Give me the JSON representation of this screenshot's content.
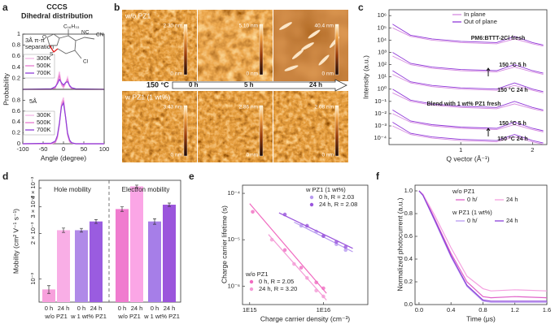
{
  "panel_b": {
    "label": "b",
    "rows": [
      {
        "label": "w/o PZ1",
        "scales": [
          "2.30 nm",
          "5.10 nm",
          "40.4 nm"
        ]
      },
      {
        "label": "w PZ1 (1 wt%)",
        "scales": [
          "3.43 nm",
          "2.86 nm",
          "2.08 nm"
        ]
      }
    ],
    "zero": "0 nm",
    "temperature": "150 °C",
    "times": [
      "0 h",
      "5 h",
      "24 h"
    ]
  },
  "chart_data": [
    {
      "type": "line",
      "label": "a",
      "title": "CCCS",
      "subtitle": "Dihedral distribution",
      "annotation": [
        "3Å π-π",
        "separation"
      ],
      "molecule_labels": [
        "C₁₆H₃₃",
        "NC",
        "CN",
        "Cl",
        "O",
        "S"
      ],
      "ylabel": "Probability",
      "x": [
        -100,
        -30,
        -20,
        -15,
        -10,
        -5,
        0,
        5,
        10,
        15,
        20,
        30,
        100
      ],
      "series": [
        {
          "name": "300K",
          "color": "#f5b6e6",
          "values": [
            0,
            0,
            0.02,
            0.15,
            0.32,
            0.08,
            0.02,
            0.1,
            0.22,
            0.05,
            0.01,
            0,
            0
          ]
        },
        {
          "name": "500K",
          "color": "#e67ad0",
          "values": [
            0,
            0,
            0.03,
            0.12,
            0.25,
            0.1,
            0.05,
            0.12,
            0.18,
            0.06,
            0.02,
            0,
            0
          ]
        },
        {
          "name": "700K",
          "color": "#8e3fd8",
          "values": [
            0,
            0.01,
            0.05,
            0.1,
            0.18,
            0.12,
            0.08,
            0.12,
            0.14,
            0.07,
            0.03,
            0.01,
            0
          ]
        }
      ],
      "xlim": [
        -100,
        100
      ],
      "ylim": [
        0,
        1
      ],
      "yticks": [
        0.2,
        0.4,
        0.6,
        0.8,
        1
      ]
    },
    {
      "type": "line",
      "annotation": [
        "5Å"
      ],
      "xlabel": "Angle (degree)",
      "x": [
        -100,
        -30,
        -20,
        -15,
        -10,
        -5,
        0,
        5,
        10,
        15,
        20,
        30,
        100
      ],
      "series": [
        {
          "name": "300K",
          "color": "#f5b6e6",
          "values": [
            0,
            0,
            0.02,
            0.1,
            0.35,
            0.75,
            0.85,
            0.5,
            0.15,
            0.03,
            0.01,
            0,
            0
          ]
        },
        {
          "name": "500K",
          "color": "#e67ad0",
          "values": [
            0,
            0,
            0.03,
            0.12,
            0.35,
            0.7,
            0.8,
            0.5,
            0.18,
            0.05,
            0.01,
            0,
            0
          ]
        },
        {
          "name": "700K",
          "color": "#8e3fd8",
          "values": [
            0,
            0.01,
            0.05,
            0.15,
            0.38,
            0.68,
            0.75,
            0.5,
            0.2,
            0.07,
            0.02,
            0,
            0
          ]
        }
      ],
      "xlim": [
        -100,
        100
      ],
      "xticks": [
        -100,
        -50,
        0,
        50,
        100
      ],
      "ylim": [
        0,
        1
      ],
      "yticks": [
        0,
        0.2,
        0.4,
        0.6,
        0.8
      ]
    },
    {
      "type": "line",
      "label": "c",
      "ylog": true,
      "xlabel": "Q vector (Å⁻¹)",
      "ylabel": "Intensity (a.u.)",
      "annotations": [
        "PM6:BTTT-2Cl fresh",
        "150 °C 5 h",
        "150 °C 24 h",
        "Blend with 1 wt% PZ1 fresh",
        "150 °C 5 h",
        "150 °C 24 h"
      ],
      "x": [
        0.05,
        0.3,
        0.6,
        1.0,
        1.5,
        1.75,
        2.0,
        2.15
      ],
      "series": [
        {
          "name": "In plane",
          "color": "#d68ae0",
          "curves": [
            [
              100000,
              20000,
              10000,
              6300,
              5000,
              12600,
              5000,
              3200
            ],
            [
              500,
              100,
              50,
              32,
              25,
              63,
              25,
              16
            ],
            [
              16,
              3.2,
              1.6,
              1,
              0.8,
              2,
              0.8,
              0.5
            ],
            [
              0.5,
              0.1,
              0.05,
              0.032,
              0.025,
              0.063,
              0.025,
              0.016
            ],
            [
              0.01,
              0.002,
              0.001,
              0.00063,
              0.0005,
              0.00126,
              0.0005,
              0.00032
            ],
            [
              0.001,
              0.0002,
              0.0001,
              6.3e-05,
              5e-05,
              0.000126,
              5e-05,
              3.2e-05
            ]
          ]
        },
        {
          "name": "Out of plane",
          "color": "#9038d8",
          "curves": [
            [
              200000,
              25000,
              12600,
              7900,
              6300,
              20000,
              6300,
              4000
            ],
            [
              1000,
              126,
              63,
              40,
              32,
              100,
              32,
              20
            ],
            [
              32,
              4,
              2,
              1.26,
              1,
              3.2,
              1,
              0.63
            ],
            [
              1,
              0.126,
              0.063,
              0.04,
              0.032,
              0.1,
              0.032,
              0.02
            ],
            [
              0.02,
              0.0025,
              0.00126,
              0.0008,
              0.00063,
              0.002,
              0.00063,
              0.0004
            ],
            [
              0.002,
              0.00025,
              0.000126,
              8e-05,
              6.3e-05,
              0.0002,
              6.3e-05,
              4e-05
            ]
          ]
        }
      ],
      "xlim": [
        0,
        2.2
      ],
      "xticks": [
        1,
        2
      ],
      "ylim": [
        3e-05,
        3000000
      ],
      "yticks": [
        {
          "value": 1000000,
          "label": "10⁶"
        },
        {
          "value": 100000,
          "label": "10⁵"
        },
        {
          "value": 10000,
          "label": "10⁴"
        },
        {
          "value": 1000,
          "label": "10³"
        },
        {
          "value": 100,
          "label": "10²"
        },
        {
          "value": 10,
          "label": "10¹"
        },
        {
          "value": 1,
          "label": "10⁰"
        },
        {
          "value": 0.1,
          "label": "10⁻¹"
        },
        {
          "value": 0.01,
          "label": "10⁻²"
        },
        {
          "value": 0.001,
          "label": "10⁻³"
        },
        {
          "value": 0.0001,
          "label": "10⁻⁴"
        }
      ]
    },
    {
      "type": "bar",
      "label": "d",
      "ylog": true,
      "ylabel": "Mobility (cm² V⁻¹ s⁻¹)",
      "annotations": [
        "Hole mobility",
        "Electron mobility"
      ],
      "categories": [
        "0 h",
        "24 h",
        "0 h",
        "24 h",
        "0 h",
        "24 h",
        "0 h",
        "24 h"
      ],
      "groups": [
        "w/o PZ1",
        "w 1 wt% PZ1",
        "w/o PZ1",
        "w 1 wt% PZ1"
      ],
      "values": [
        0.00085,
        0.0021,
        0.0021,
        0.0024,
        0.0029,
        0.0041,
        0.0024,
        0.0031
      ],
      "errors": [
        5e-05,
        7e-05,
        6e-05,
        7e-05,
        0.0001,
        8e-05,
        0.0001,
        8e-05
      ],
      "colors": [
        "#f7a0dc",
        "#f9aee6",
        "#b08ae8",
        "#9a5ce0",
        "#f07ccf",
        "#fba6e6",
        "#a67ee8",
        "#9b55dc"
      ],
      "ylim": [
        0.0007,
        0.0045
      ],
      "yticks": [
        {
          "value": 0.001,
          "label": "10⁻³"
        },
        {
          "value": 0.002,
          "label": "2 × 10⁻³"
        },
        {
          "value": 0.003,
          "label": "3 × 10⁻³"
        },
        {
          "value": 0.004,
          "label": "4 × 10⁻³"
        }
      ]
    },
    {
      "type": "scatter",
      "label": "e",
      "xlog": true,
      "ylog": true,
      "xlabel": "Charge carrier density (cm⁻³)",
      "ylabel": "Charge carrier lifetime (s)",
      "groups": [
        {
          "title": "w PZ1 (1 wt%)",
          "series": [
            {
              "name": "0 h, R = 2.03",
              "color": "#b89af0",
              "x": [
                5000000000000000.0,
                8000000000000000.0,
                1e+16,
                1.5e+16,
                2e+16
              ],
              "values": [
                2e-05,
                1.5e-05,
                1.2e-05,
                8e-06,
                6e-06
              ],
              "fit_x": [
                4000000000000000.0,
                2.5e+16
              ],
              "fit_y": [
                2.4e-05,
                5.5e-06
              ]
            },
            {
              "name": "24 h, R = 2.08",
              "color": "#9a55dc",
              "x": [
                3000000000000000.0,
                6000000000000000.0,
                1e+16,
                1.5e+16,
                2e+16
              ],
              "values": [
                3.5e-05,
                2e-05,
                1.2e-05,
                9e-06,
                7e-06
              ],
              "fit_x": [
                2500000000000000.0,
                2.5e+16
              ],
              "fit_y": [
                3.8e-05,
                6.5e-06
              ]
            }
          ]
        },
        {
          "title": "w/o PZ1",
          "series": [
            {
              "name": "0 h, R = 2.05",
              "color": "#f06bc0",
              "x": [
                1100000000000000.0,
                3000000000000000.0,
                5000000000000000.0,
                8000000000000000.0,
                1e+16
              ],
              "values": [
                4e-05,
                6e-06,
                2.5e-06,
                1.2e-06,
                9e-07
              ],
              "fit_x": [
                1000000000000000.0,
                1.1e+16
              ],
              "fit_y": [
                6e-05,
                7e-07
              ]
            },
            {
              "name": "24 h, R = 3.20",
              "color": "#f49ad6",
              "x": [
                2000000000000000.0,
                4000000000000000.0,
                6000000000000000.0,
                8000000000000000.0,
                1e+16
              ],
              "values": [
                1e-05,
                3e-06,
                1.5e-06,
                8e-07,
                6e-07
              ],
              "fit_x": [
                1800000000000000.0,
                1.1e+16
              ],
              "fit_y": [
                1.3e-05,
                5e-07
              ]
            }
          ]
        }
      ],
      "xlim": [
        800000000000000.0,
        4e+16
      ],
      "xticks": [
        {
          "value": 1000000000000000.0,
          "label": "1E15"
        },
        {
          "value": 1e+16,
          "label": "1E16"
        }
      ],
      "ylim": [
        4e-07,
        0.00015
      ],
      "yticks": [
        {
          "value": 1e-06,
          "label": "10⁻⁶"
        },
        {
          "value": 1e-05,
          "label": "10⁻⁵"
        },
        {
          "value": 0.0001,
          "label": "10⁻⁴"
        }
      ]
    },
    {
      "type": "line",
      "label": "f",
      "xlabel": "Time (μs)",
      "ylabel": "Normalized photocurrent (a.u.)",
      "x": [
        0,
        0.05,
        0.2,
        0.4,
        0.6,
        0.8,
        0.9,
        1.2,
        1.6
      ],
      "groups": [
        {
          "title": "w/o PZ1",
          "series": [
            {
              "name": "0 h/",
              "color": "#e060c8",
              "values": [
                1,
                0.97,
                0.75,
                0.45,
                0.2,
                0.07,
                0.06,
                0.07,
                0.06
              ]
            },
            {
              "name": "24 h",
              "color": "#f5a0e0",
              "values": [
                1,
                0.97,
                0.78,
                0.5,
                0.25,
                0.14,
                0.12,
                0.13,
                0.12
              ]
            }
          ]
        },
        {
          "title": "w PZ1 (1 wt%)",
          "series": [
            {
              "name": "0 h/",
              "color": "#b89af0",
              "values": [
                1,
                0.96,
                0.73,
                0.42,
                0.16,
                0.03,
                0.02,
                0.02,
                0.02
              ]
            },
            {
              "name": "24 h",
              "color": "#8a40d8",
              "values": [
                1,
                0.96,
                0.74,
                0.43,
                0.17,
                0.04,
                0.03,
                0.03,
                0.03
              ]
            }
          ]
        }
      ],
      "xlim": [
        -0.05,
        1.6
      ],
      "xticks": [
        {
          "value": 0,
          "label": "0.0"
        },
        0.4,
        0.8,
        1.2,
        1.6
      ],
      "ylim": [
        0,
        1.05
      ],
      "yticks": [
        {
          "value": 0,
          "label": "0.0"
        },
        0.2,
        0.4,
        0.6,
        0.8,
        {
          "value": 1,
          "label": "1.0"
        }
      ]
    }
  ]
}
